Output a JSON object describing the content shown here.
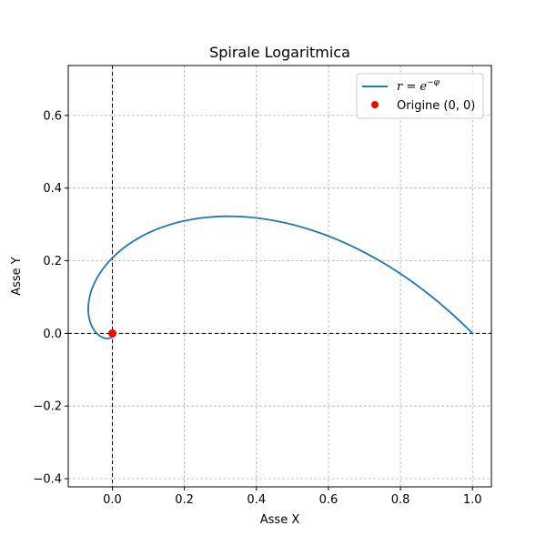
{
  "chart_data": {
    "type": "line",
    "title": "Spirale Logaritmica",
    "xlabel": "Asse X",
    "ylabel": "Asse Y",
    "xlim": [
      -0.1225,
      1.0525
    ],
    "ylim": [
      -0.4225,
      0.7375
    ],
    "xticks": [
      0.0,
      0.2,
      0.4,
      0.6,
      0.8,
      1.0
    ],
    "xtick_labels": [
      "0.0",
      "0.2",
      "0.4",
      "0.6",
      "0.8",
      "1.0"
    ],
    "yticks": [
      -0.4,
      -0.2,
      0.0,
      0.2,
      0.4,
      0.6
    ],
    "ytick_labels": [
      "−0.4",
      "−0.2",
      "0.0",
      "0.2",
      "0.4",
      "0.6"
    ],
    "grid": true,
    "legend_position": "top-right",
    "reference_lines": {
      "x": 0,
      "y": 0
    },
    "series": [
      {
        "name": "r = e^{-φ}",
        "kind": "line",
        "color": "#1f77b4",
        "phi_range": [
          0,
          6.2832
        ],
        "equation": "r = e^-phi"
      },
      {
        "name": "Origine (0, 0)",
        "kind": "scatter",
        "color": "#ff0000",
        "points": [
          [
            0,
            0
          ]
        ]
      }
    ],
    "legend": [
      {
        "base": "r",
        "eq": " = ",
        "exp_base": "e",
        "exp": "−φ"
      },
      {
        "label": "Origine (0, 0)"
      }
    ]
  }
}
